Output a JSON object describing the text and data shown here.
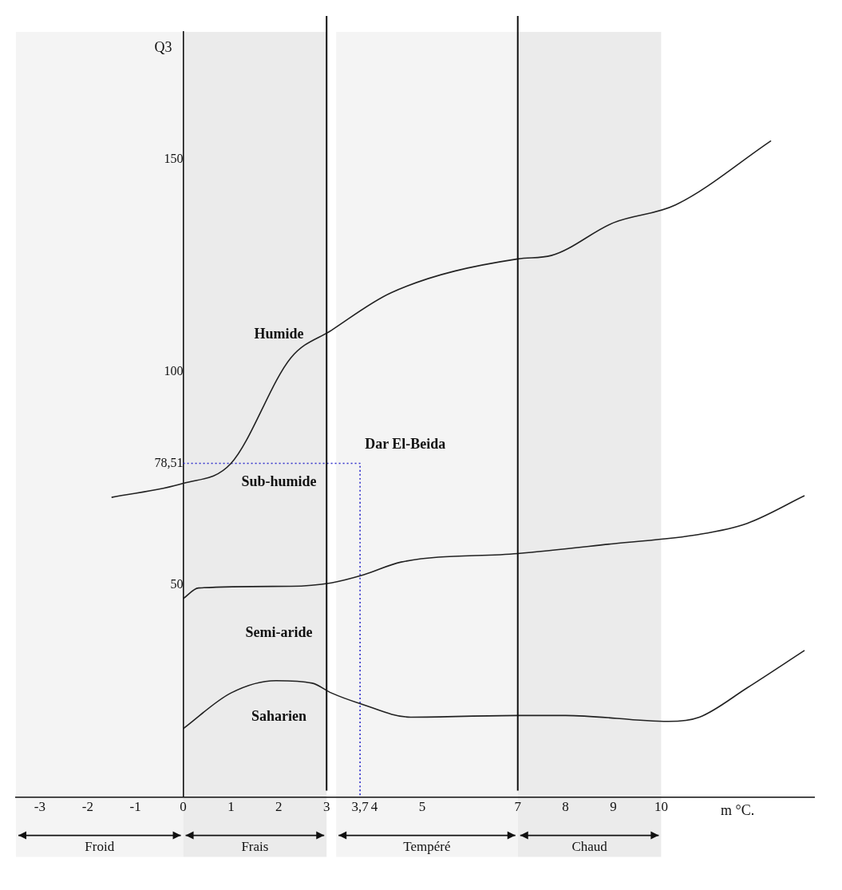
{
  "chart_data": {
    "type": "line",
    "xlabel": "m °C.",
    "ylabel": "Q3",
    "xlim": [
      -3.5,
      13.2
    ],
    "ylim": [
      0,
      180
    ],
    "xticks": [
      -3,
      -2,
      -1,
      0,
      1,
      2,
      3,
      {
        "value": 3.7,
        "label": "3,7"
      },
      4,
      5,
      7,
      8,
      9,
      10
    ],
    "yticks": [
      50,
      {
        "value": 78.51,
        "label": "78,51"
      },
      100,
      150
    ],
    "grid": false,
    "legend": false,
    "marker": "none",
    "series": [
      {
        "type": "line",
        "color": "#222222",
        "line_style": "solid",
        "x": [
          -1.5,
          0,
          1,
          2.25,
          3.1,
          4.36,
          7,
          7.7,
          9,
          10.3,
          12.3
        ],
        "values": [
          70.5,
          73.8,
          78.5,
          103.3,
          109.8,
          118.7,
          126.6,
          127.4,
          135.1,
          139.3,
          154.4
        ]
      },
      {
        "type": "line",
        "color": "#222222",
        "line_style": "solid",
        "x": [
          0,
          0.32,
          2.25,
          3.1,
          3.78,
          4.56,
          7,
          9,
          10.8,
          11.8,
          13
        ],
        "values": [
          46.7,
          49.2,
          49.6,
          50.4,
          52.3,
          55.3,
          57.3,
          59.6,
          61.8,
          64.4,
          70.9
        ]
      },
      {
        "type": "line",
        "color": "#222222",
        "line_style": "solid",
        "x": [
          0,
          1,
          1.94,
          2.7,
          3.1,
          3.7,
          4.76,
          7,
          8,
          10.15,
          10.8,
          11.8,
          13
        ],
        "values": [
          16.1,
          24.5,
          27.4,
          26.8,
          24.5,
          22,
          18.8,
          19.2,
          19.2,
          17.8,
          18.8,
          25.7,
          34.5
        ]
      },
      {
        "type": "line",
        "color": "#3333cc",
        "line_style": "dotted",
        "x": [
          0,
          3.7,
          3.7
        ],
        "values": [
          78.51,
          78.51,
          0
        ]
      }
    ],
    "ref_lines": [
      {
        "axis": "x",
        "value": 3
      },
      {
        "axis": "x",
        "value": 7
      }
    ],
    "bands": [
      {
        "axis": "x",
        "from": -3.5,
        "to": 0,
        "label": "Froid",
        "color": "#f4f4f4"
      },
      {
        "axis": "x",
        "from": 0,
        "to": 3,
        "label": "Frais",
        "color": "#ebebeb"
      },
      {
        "axis": "x",
        "from": 3.2,
        "to": 7,
        "label": "Tempéré",
        "color": "#f4f4f4"
      },
      {
        "axis": "x",
        "from": 7,
        "to": 10,
        "label": "Chaud",
        "color": "#ebebeb"
      }
    ],
    "annotations": [
      "Humide",
      {
        "text": "Dar El-Beida",
        "x": 3.7,
        "y": 78.51
      },
      "Sub-humide",
      "Semi-aride",
      "Saharien"
    ]
  }
}
